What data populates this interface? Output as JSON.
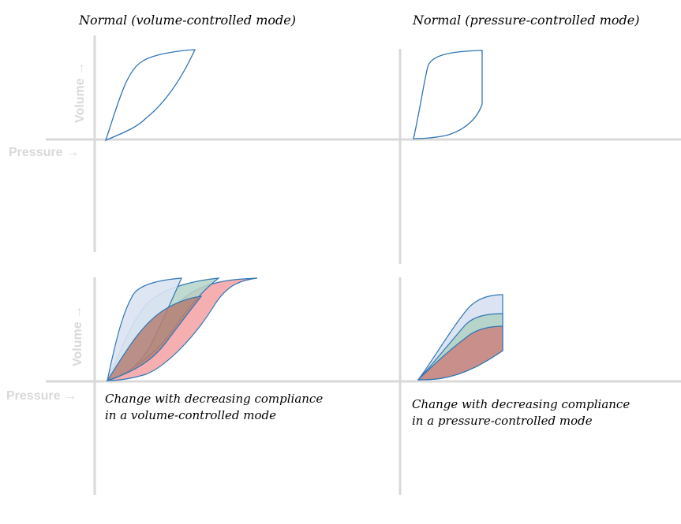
{
  "panels": [
    {
      "title": "Normal (volume-controlled mode)",
      "x_label": "Pressure →",
      "y_label": "Volume →"
    },
    {
      "title": "Normal (pressure-controlled mode)"
    },
    {
      "caption": [
        "Change with decreasing compliance",
        "in a volume-controlled mode"
      ],
      "x_label": "Pressure →",
      "y_label": "Volume →"
    },
    {
      "caption": [
        "Change with decreasing compliance",
        "in a pressure-controlled mode"
      ]
    }
  ],
  "colors": {
    "axis": "#d9d9d9",
    "label": "#d9d9d9",
    "curve_stroke": "#2e75b6",
    "loop_blue": "#dae3f3",
    "loop_green": "#b4d3c8",
    "loop_red": "#f4a6a9",
    "loop_overlap": "#b58074"
  }
}
